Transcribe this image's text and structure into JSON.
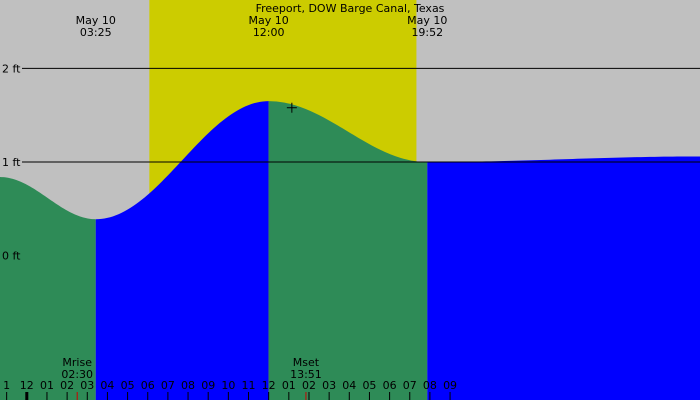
{
  "chart_data": {
    "type": "area",
    "title": "Freeport, DOW Barge Canal, Texas",
    "x_unit": "hours since midnight May 10",
    "x_range": [
      -1.33,
      33.4
    ],
    "ylim": [
      -1.54,
      2.73
    ],
    "y_ticks": [
      {
        "value": 2,
        "label": "2 ft"
      },
      {
        "value": 1,
        "label": "1 ft"
      },
      {
        "value": 0,
        "label": "0 ft"
      }
    ],
    "x_ticks": [
      "1",
      "12",
      "01",
      "02",
      "03",
      "04",
      "05",
      "06",
      "07",
      "08",
      "09",
      "10",
      "11",
      "12",
      "01",
      "02",
      "03",
      "04",
      "05",
      "06",
      "07",
      "08",
      "09"
    ],
    "daylight": {
      "start_hour": 6.08,
      "end_hour": 19.33
    },
    "events": [
      {
        "date": "May 10",
        "time": "03:25",
        "hour": 3.42,
        "height": 0.39,
        "kind": "low"
      },
      {
        "date": "May 10",
        "time": "12:00",
        "hour": 12.0,
        "height": 1.65,
        "kind": "high"
      },
      {
        "date": "May 10",
        "time": "19:52",
        "hour": 19.87,
        "height": 1.0,
        "kind": "low"
      }
    ],
    "moon": [
      {
        "label": "Mrise",
        "time": "02:30",
        "hour": 2.5
      },
      {
        "label": "Mset",
        "time": "13:51",
        "hour": 13.85
      }
    ],
    "series": [
      {
        "kind": "falling",
        "x_range": [
          -1.33,
          3.42
        ]
      },
      {
        "kind": "rising",
        "x_range": [
          3.42,
          12.0
        ]
      },
      {
        "kind": "falling",
        "x_range": [
          12.0,
          19.87
        ]
      },
      {
        "kind": "rising",
        "x_range": [
          19.87,
          33.4
        ]
      }
    ],
    "start_height": 0.84,
    "end_height": 1.06,
    "cursor": {
      "hour": 13.15,
      "height": 1.58
    },
    "colors": {
      "night": "#c0c0c0",
      "day": "#cccc00",
      "falling": "#2e8b57",
      "rising": "#0000ff",
      "grid": "#000000",
      "moon_marker": "#cc0000"
    }
  }
}
